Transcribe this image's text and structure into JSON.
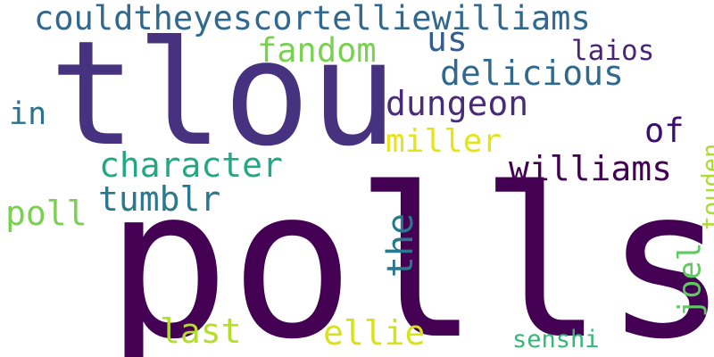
{
  "words": [
    {
      "id": "polls",
      "text": "polls",
      "color": "#440154"
    },
    {
      "id": "tlou",
      "text": "tlou",
      "color": "#46327e"
    },
    {
      "id": "couldtheyescortelliewilliams",
      "text": "couldtheyescortelliewilliams",
      "color": "#31688e"
    },
    {
      "id": "us",
      "text": "us",
      "color": "#365c8d"
    },
    {
      "id": "fandom",
      "text": "fandom",
      "color": "#7ad151"
    },
    {
      "id": "laios",
      "text": "laios",
      "color": "#482677"
    },
    {
      "id": "delicious",
      "text": "delicious",
      "color": "#31688e"
    },
    {
      "id": "dungeon",
      "text": "dungeon",
      "color": "#472c7a"
    },
    {
      "id": "in",
      "text": "in",
      "color": "#2c728e"
    },
    {
      "id": "of",
      "text": "of",
      "color": "#3b0f70"
    },
    {
      "id": "miller",
      "text": "miller",
      "color": "#e4e419"
    },
    {
      "id": "character",
      "text": "character",
      "color": "#22a884"
    },
    {
      "id": "williams",
      "text": "williams",
      "color": "#440154"
    },
    {
      "id": "tumblr",
      "text": "tumblr",
      "color": "#2a788e"
    },
    {
      "id": "poll",
      "text": "poll",
      "color": "#7ad151"
    },
    {
      "id": "the",
      "text": "the",
      "color": "#2a788e"
    },
    {
      "id": "touden",
      "text": "touden",
      "color": "#addc30"
    },
    {
      "id": "joel",
      "text": "joel",
      "color": "#5ec962"
    },
    {
      "id": "last",
      "text": "last",
      "color": "#b5de2b"
    },
    {
      "id": "ellie",
      "text": "ellie",
      "color": "#d8e219"
    },
    {
      "id": "senshi",
      "text": "senshi",
      "color": "#35b779"
    }
  ]
}
